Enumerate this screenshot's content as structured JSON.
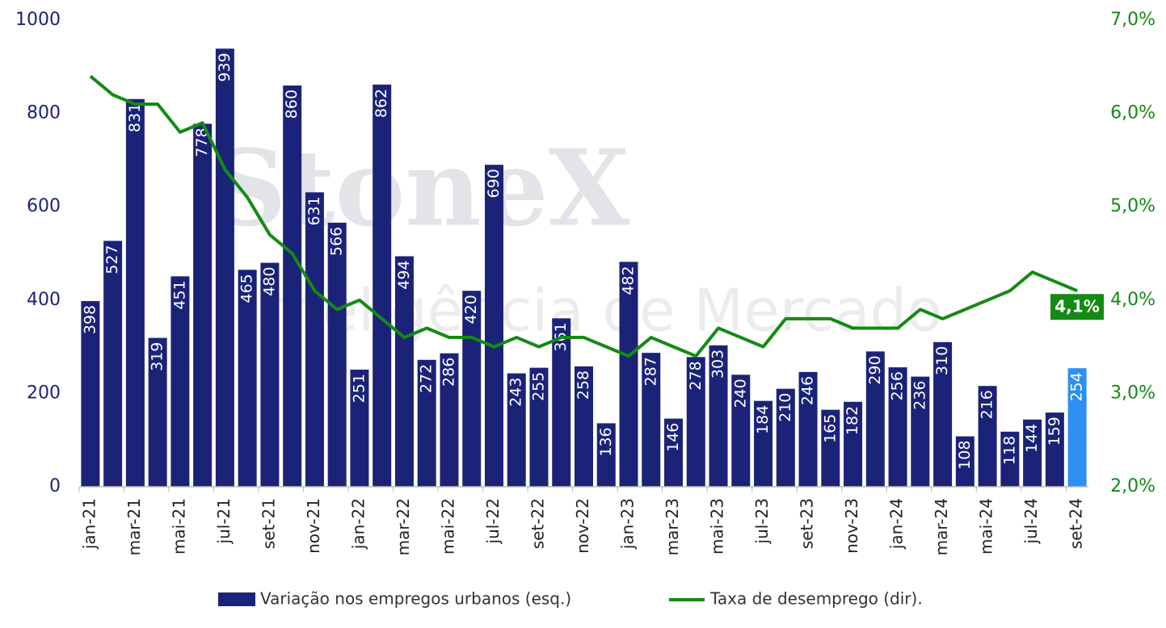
{
  "chart_data": {
    "type": "bar-line",
    "watermark": [
      "StoneX",
      "Inteligência de Mercado"
    ],
    "categories": [
      "jan-21",
      null,
      "mar-21",
      null,
      "mai-21",
      null,
      "jul-21",
      null,
      "set-21",
      null,
      "nov-21",
      null,
      "jan-22",
      null,
      "mar-22",
      null,
      "mai-22",
      null,
      "jul-22",
      null,
      "set-22",
      null,
      "nov-22",
      null,
      "jan-23",
      null,
      "mar-23",
      null,
      "mai-23",
      null,
      "jul-23",
      null,
      "set-23",
      null,
      "nov-23",
      null,
      "jan-24",
      null,
      "mar-24",
      null,
      "mai-24",
      null,
      "jul-24",
      null,
      "set-24"
    ],
    "series": [
      {
        "name": "Variação nos empregos urbanos (esq.)",
        "type": "bar",
        "color": "#1b2378",
        "colors": [
          "#1b2378",
          "#1b2378",
          "#1b2378",
          "#1b2378",
          "#1b2378",
          "#1b2378",
          "#1b2378",
          "#1b2378",
          "#1b2378",
          "#1b2378",
          "#1b2378",
          "#1b2378",
          "#1b2378",
          "#1b2378",
          "#1b2378",
          "#1b2378",
          "#1b2378",
          "#1b2378",
          "#1b2378",
          "#1b2378",
          "#1b2378",
          "#1b2378",
          "#1b2378",
          "#1b2378",
          "#1b2378",
          "#1b2378",
          "#1b2378",
          "#1b2378",
          "#1b2378",
          "#1b2378",
          "#1b2378",
          "#1b2378",
          "#1b2378",
          "#1b2378",
          "#1b2378",
          "#1b2378",
          "#1b2378",
          "#1b2378",
          "#1b2378",
          "#1b2378",
          "#1b2378",
          "#1b2378",
          "#1b2378",
          "#1b2378",
          "#2e8ff2"
        ],
        "values": [
          398,
          527,
          831,
          319,
          451,
          778,
          939,
          465,
          480,
          860,
          631,
          566,
          251,
          862,
          494,
          272,
          286,
          420,
          690,
          243,
          255,
          361,
          258,
          136,
          482,
          287,
          146,
          278,
          303,
          240,
          184,
          210,
          246,
          165,
          182,
          290,
          256,
          236,
          310,
          108,
          216,
          118,
          144,
          159,
          254
        ]
      },
      {
        "name": "Taxa de desemprego (dir).",
        "type": "line",
        "axis": "y2",
        "color": "#148a14",
        "values": [
          6.4,
          6.2,
          6.1,
          6.1,
          5.8,
          5.9,
          5.4,
          5.1,
          4.7,
          4.5,
          4.1,
          3.9,
          4.0,
          3.8,
          3.6,
          3.7,
          3.6,
          3.6,
          3.5,
          3.6,
          3.5,
          3.6,
          3.6,
          3.5,
          3.4,
          3.6,
          3.5,
          3.4,
          3.7,
          3.6,
          3.5,
          3.8,
          3.8,
          3.8,
          3.7,
          3.7,
          3.7,
          3.9,
          3.8,
          3.9,
          4.0,
          4.1,
          4.3,
          4.2,
          4.1
        ]
      }
    ],
    "annotation": {
      "text": "4,1%",
      "value": 4.1
    },
    "ylim": [
      0,
      1000
    ],
    "yticks": [
      0,
      200,
      400,
      600,
      800,
      1000
    ],
    "y2lim": [
      2,
      7
    ],
    "y2ticks": [
      {
        "value": 2,
        "label": "2,0%"
      },
      {
        "value": 3,
        "label": "3,0%"
      },
      {
        "value": 4,
        "label": "4,0%"
      },
      {
        "value": 5,
        "label": "5,0%"
      },
      {
        "value": 6,
        "label": "6,0%"
      },
      {
        "value": 7,
        "label": "7,0%"
      }
    ],
    "legend": "bottom"
  }
}
